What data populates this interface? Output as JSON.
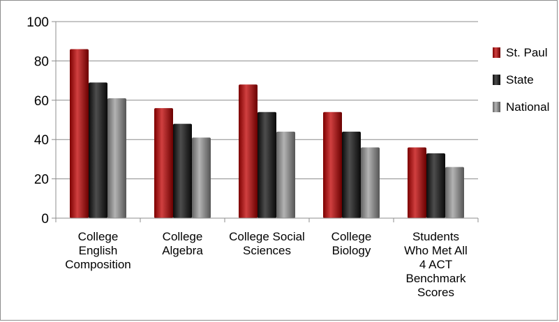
{
  "chart_data": {
    "type": "bar",
    "title": "",
    "xlabel": "",
    "ylabel": "",
    "ylim": [
      0,
      100
    ],
    "yticks": [
      0,
      20,
      40,
      60,
      80,
      100
    ],
    "grid": true,
    "legend_position": "right",
    "categories": [
      [
        "College",
        "English",
        "Composition"
      ],
      [
        "College",
        "Algebra"
      ],
      [
        "College Social",
        "Sciences"
      ],
      [
        "College",
        "Biology"
      ],
      [
        "Students",
        "Who Met All",
        "4 ACT",
        "Benchmark",
        "Scores"
      ]
    ],
    "series": [
      {
        "name": "St. Paul",
        "color": "#c00000",
        "values": [
          86,
          56,
          68,
          54,
          36
        ]
      },
      {
        "name": "State",
        "color": "#111111",
        "values": [
          69,
          48,
          54,
          44,
          33
        ]
      },
      {
        "name": "National",
        "color": "#9a9a9a",
        "values": [
          61,
          41,
          44,
          36,
          26
        ]
      }
    ]
  }
}
